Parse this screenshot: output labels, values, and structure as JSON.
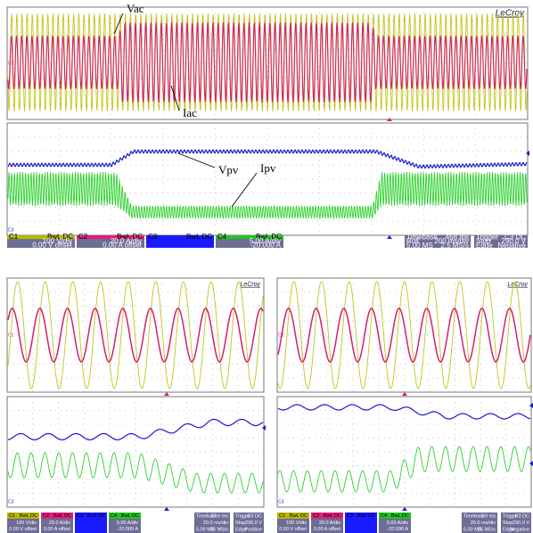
{
  "scopes": [
    {
      "brand": "LeCroy",
      "trace_labels": [
        "Vac",
        "Iac",
        "Vpv",
        "Ipv"
      ],
      "channel_tags": [
        "C2",
        "C3"
      ],
      "channels": [
        {
          "name": "C1",
          "coupling": "BwL DC",
          "scale": "100 V/div",
          "offset": "0.00 V offset"
        },
        {
          "name": "C2",
          "coupling": "BwL DC",
          "scale": "20.0 A/div",
          "offset": "0.00 A offset"
        },
        {
          "name": "C3",
          "coupling": "BwL DC",
          "scale": "",
          "offset": ""
        },
        {
          "name": "C4",
          "coupling": "BwL DC",
          "scale": "5.00 A/div",
          "offset": "-20.000 A"
        }
      ],
      "timebase": [
        [
          "Timebase",
          "468 ms"
        ],
        [
          "Roll",
          "200 ms/div"
        ],
        [
          "5.00 MS",
          "2.5 MS/s"
        ]
      ],
      "trigger": [
        [
          "Trigger",
          "C3 DC"
        ],
        [
          "Stop",
          "290.0 V"
        ],
        [
          "Edge",
          "Negative"
        ]
      ]
    },
    {
      "brand": "LeCroy",
      "trace_labels": [],
      "channel_tags": [
        "C2",
        "C3"
      ],
      "channels": [
        {
          "name": "C1",
          "coupling": "BwL DC",
          "scale": "100 V/div",
          "offset": "0.00 V offset"
        },
        {
          "name": "C2",
          "coupling": "BwL DC",
          "scale": "20.0 A/div",
          "offset": "0.00 A offset"
        },
        {
          "name": "C3",
          "coupling": "BwL DC",
          "scale": "",
          "offset": ""
        },
        {
          "name": "C4",
          "coupling": "BwL DC",
          "scale": "5.00 A/div",
          "offset": "-20.000 A"
        }
      ],
      "timebase": [
        [
          "Timebase",
          "37.6 ms"
        ],
        [
          "",
          "20.0 ms/div"
        ],
        [
          "5.00 MS",
          "25 MS/s"
        ]
      ],
      "trigger": [
        [
          "Trigger",
          "C3 DC"
        ],
        [
          "Stop",
          "290.0 V"
        ],
        [
          "Edge",
          "Positive"
        ]
      ]
    },
    {
      "brand": "LeCroy",
      "trace_labels": [],
      "channel_tags": [
        "C2",
        "C3"
      ],
      "channels": [
        {
          "name": "C1",
          "coupling": "BwL DC",
          "scale": "100 V/div",
          "offset": "0.00 V offset"
        },
        {
          "name": "C2",
          "coupling": "BwL DC",
          "scale": "20.0 A/div",
          "offset": "0.00 A offset"
        },
        {
          "name": "C3",
          "coupling": "BwL DC",
          "scale": "",
          "offset": ""
        },
        {
          "name": "C4",
          "coupling": "BwL DC",
          "scale": "5.00 A/div",
          "offset": "-20.000 A"
        }
      ],
      "timebase": [
        [
          "Timebase",
          "3.0 ms"
        ],
        [
          "",
          "20.0 ms/div"
        ],
        [
          "5.00 MS",
          "25 MS/s"
        ]
      ],
      "trigger": [
        [
          "Trigger",
          "C3 DC"
        ],
        [
          "Stop",
          "290.0 V"
        ],
        [
          "Edge",
          "Negative"
        ]
      ]
    }
  ]
}
